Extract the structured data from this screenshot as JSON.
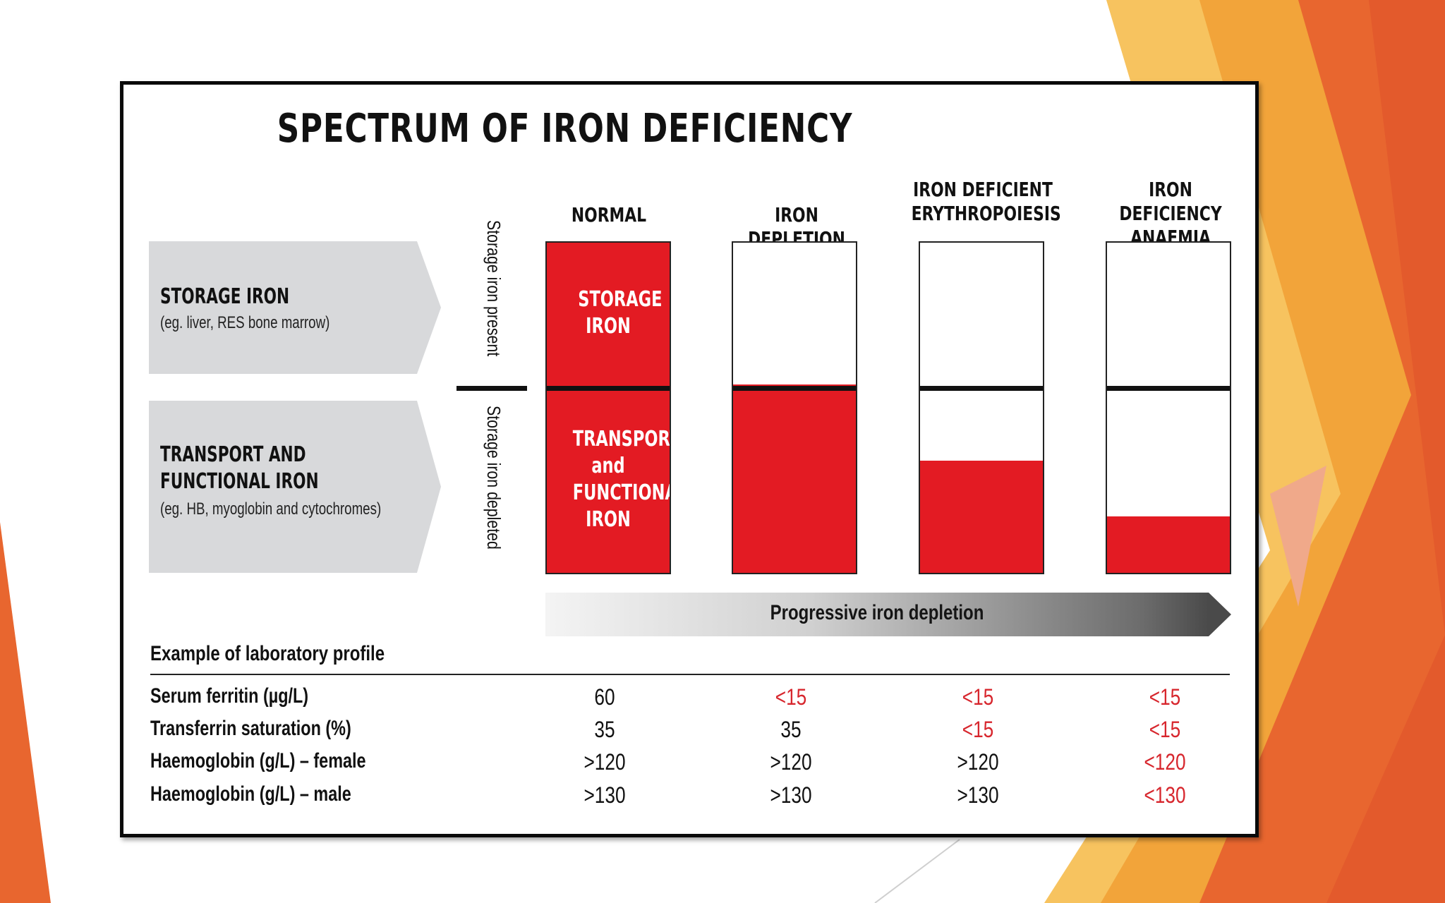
{
  "title": "SPECTRUM OF IRON DEFICIENCY",
  "colors": {
    "red": "#e31b23",
    "abnormal_text": "#d7262d",
    "label_panel": "#d8d9db",
    "orange_1": "#f2a43a",
    "orange_2": "#e8662f",
    "orange_3": "#f7c35f"
  },
  "stages": [
    {
      "label": "NORMAL",
      "fill_fraction": 1.0
    },
    {
      "label": "IRON DEPLETION",
      "fill_fraction": 0.57
    },
    {
      "label": "IRON DEFICIENT ERYTHROPOIESIS",
      "fill_fraction": 0.34
    },
    {
      "label": "IRON DEFICIENCY ANAEMIA",
      "fill_fraction": 0.17
    }
  ],
  "normal_bar_text": {
    "storage": "STORAGE IRON",
    "transport": "TRANSPORT and FUNCTIONAL IRON"
  },
  "row_labels": {
    "storage": {
      "title": "STORAGE IRON",
      "subtitle": "(eg. liver, RES bone marrow)"
    },
    "transport": {
      "title_line1": "TRANSPORT AND",
      "title_line2": "FUNCTIONAL IRON",
      "subtitle": "(eg. HB, myoglobin and cytochromes)"
    }
  },
  "vertical_labels": {
    "present": "Storage iron present",
    "depleted": "Storage iron depleted"
  },
  "progress_label": "Progressive iron depletion",
  "lab_profile": {
    "heading": "Example of laboratory profile",
    "rows": [
      {
        "name": "Serum ferritin (µg/L)",
        "values": [
          "60",
          "<15",
          "<15",
          "<15"
        ],
        "abnormal": [
          false,
          true,
          true,
          true
        ]
      },
      {
        "name": "Transferrin saturation (%)",
        "values": [
          "35",
          "35",
          "<15",
          "<15"
        ],
        "abnormal": [
          false,
          false,
          true,
          true
        ]
      },
      {
        "name": "Haemoglobin (g/L) – female",
        "values": [
          ">120",
          ">120",
          ">120",
          "<120"
        ],
        "abnormal": [
          false,
          false,
          false,
          true
        ]
      },
      {
        "name": "Haemoglobin (g/L) – male",
        "values": [
          ">130",
          ">130",
          ">130",
          "<130"
        ],
        "abnormal": [
          false,
          false,
          false,
          true
        ]
      }
    ]
  }
}
